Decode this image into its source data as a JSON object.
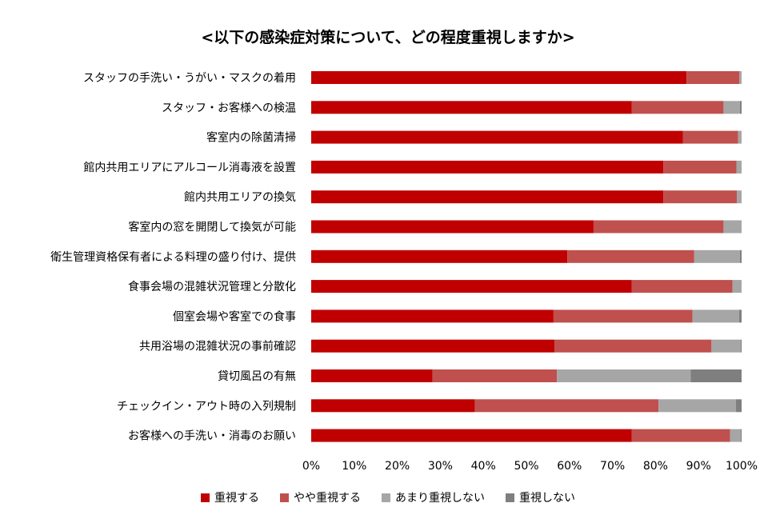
{
  "chart_data": {
    "type": "bar",
    "orientation": "horizontal-stacked-100",
    "title": "<以下の感染症対策について、どの程度重視しますか>",
    "categories": [
      "スタッフの手洗い・うがい・マスクの着用",
      "スタッフ・お客様への検温",
      "客室内の除菌清掃",
      "館内共用エリアにアルコール消毒液を設置",
      "館内共用エリアの換気",
      "客室内の窓を開閉して換気が可能",
      "衛生管理資格保有者による料理の盛り付け、提供",
      "食事会場の混雑状況管理と分散化",
      "個室会場や客室での食事",
      "共用浴場の混雑状況の事前確認",
      "貸切風呂の有無",
      "チェックイン・アウト時の入列規制",
      "お客様への手洗い・消毒のお願い"
    ],
    "series": [
      {
        "name": "重視する",
        "color": "#c00000",
        "values": [
          87.2,
          74.5,
          86.4,
          81.8,
          81.8,
          65.6,
          59.5,
          74.5,
          56.3,
          56.5,
          28.2,
          38.0,
          74.5
        ]
      },
      {
        "name": "やや重視する",
        "color": "#c0504d",
        "values": [
          12.3,
          21.3,
          12.8,
          17.0,
          17.1,
          30.2,
          29.5,
          23.4,
          32.3,
          36.5,
          28.9,
          42.7,
          22.8
        ]
      },
      {
        "name": "あまり重視しない",
        "color": "#a6a6a6",
        "values": [
          0.5,
          3.8,
          0.8,
          1.2,
          1.1,
          4.2,
          10.6,
          2.1,
          10.8,
          6.8,
          31.1,
          18.0,
          2.5
        ]
      },
      {
        "name": "重視しない",
        "color": "#7f7f7f",
        "values": [
          0.0,
          0.4,
          0.0,
          0.0,
          0.0,
          0.0,
          0.4,
          0.0,
          0.6,
          0.2,
          11.8,
          1.3,
          0.2
        ]
      }
    ],
    "xlim": [
      0,
      100
    ],
    "xticks": [
      "0%",
      "10%",
      "20%",
      "30%",
      "40%",
      "50%",
      "60%",
      "70%",
      "80%",
      "90%",
      "100%"
    ],
    "grid": false,
    "legend_position": "bottom"
  }
}
